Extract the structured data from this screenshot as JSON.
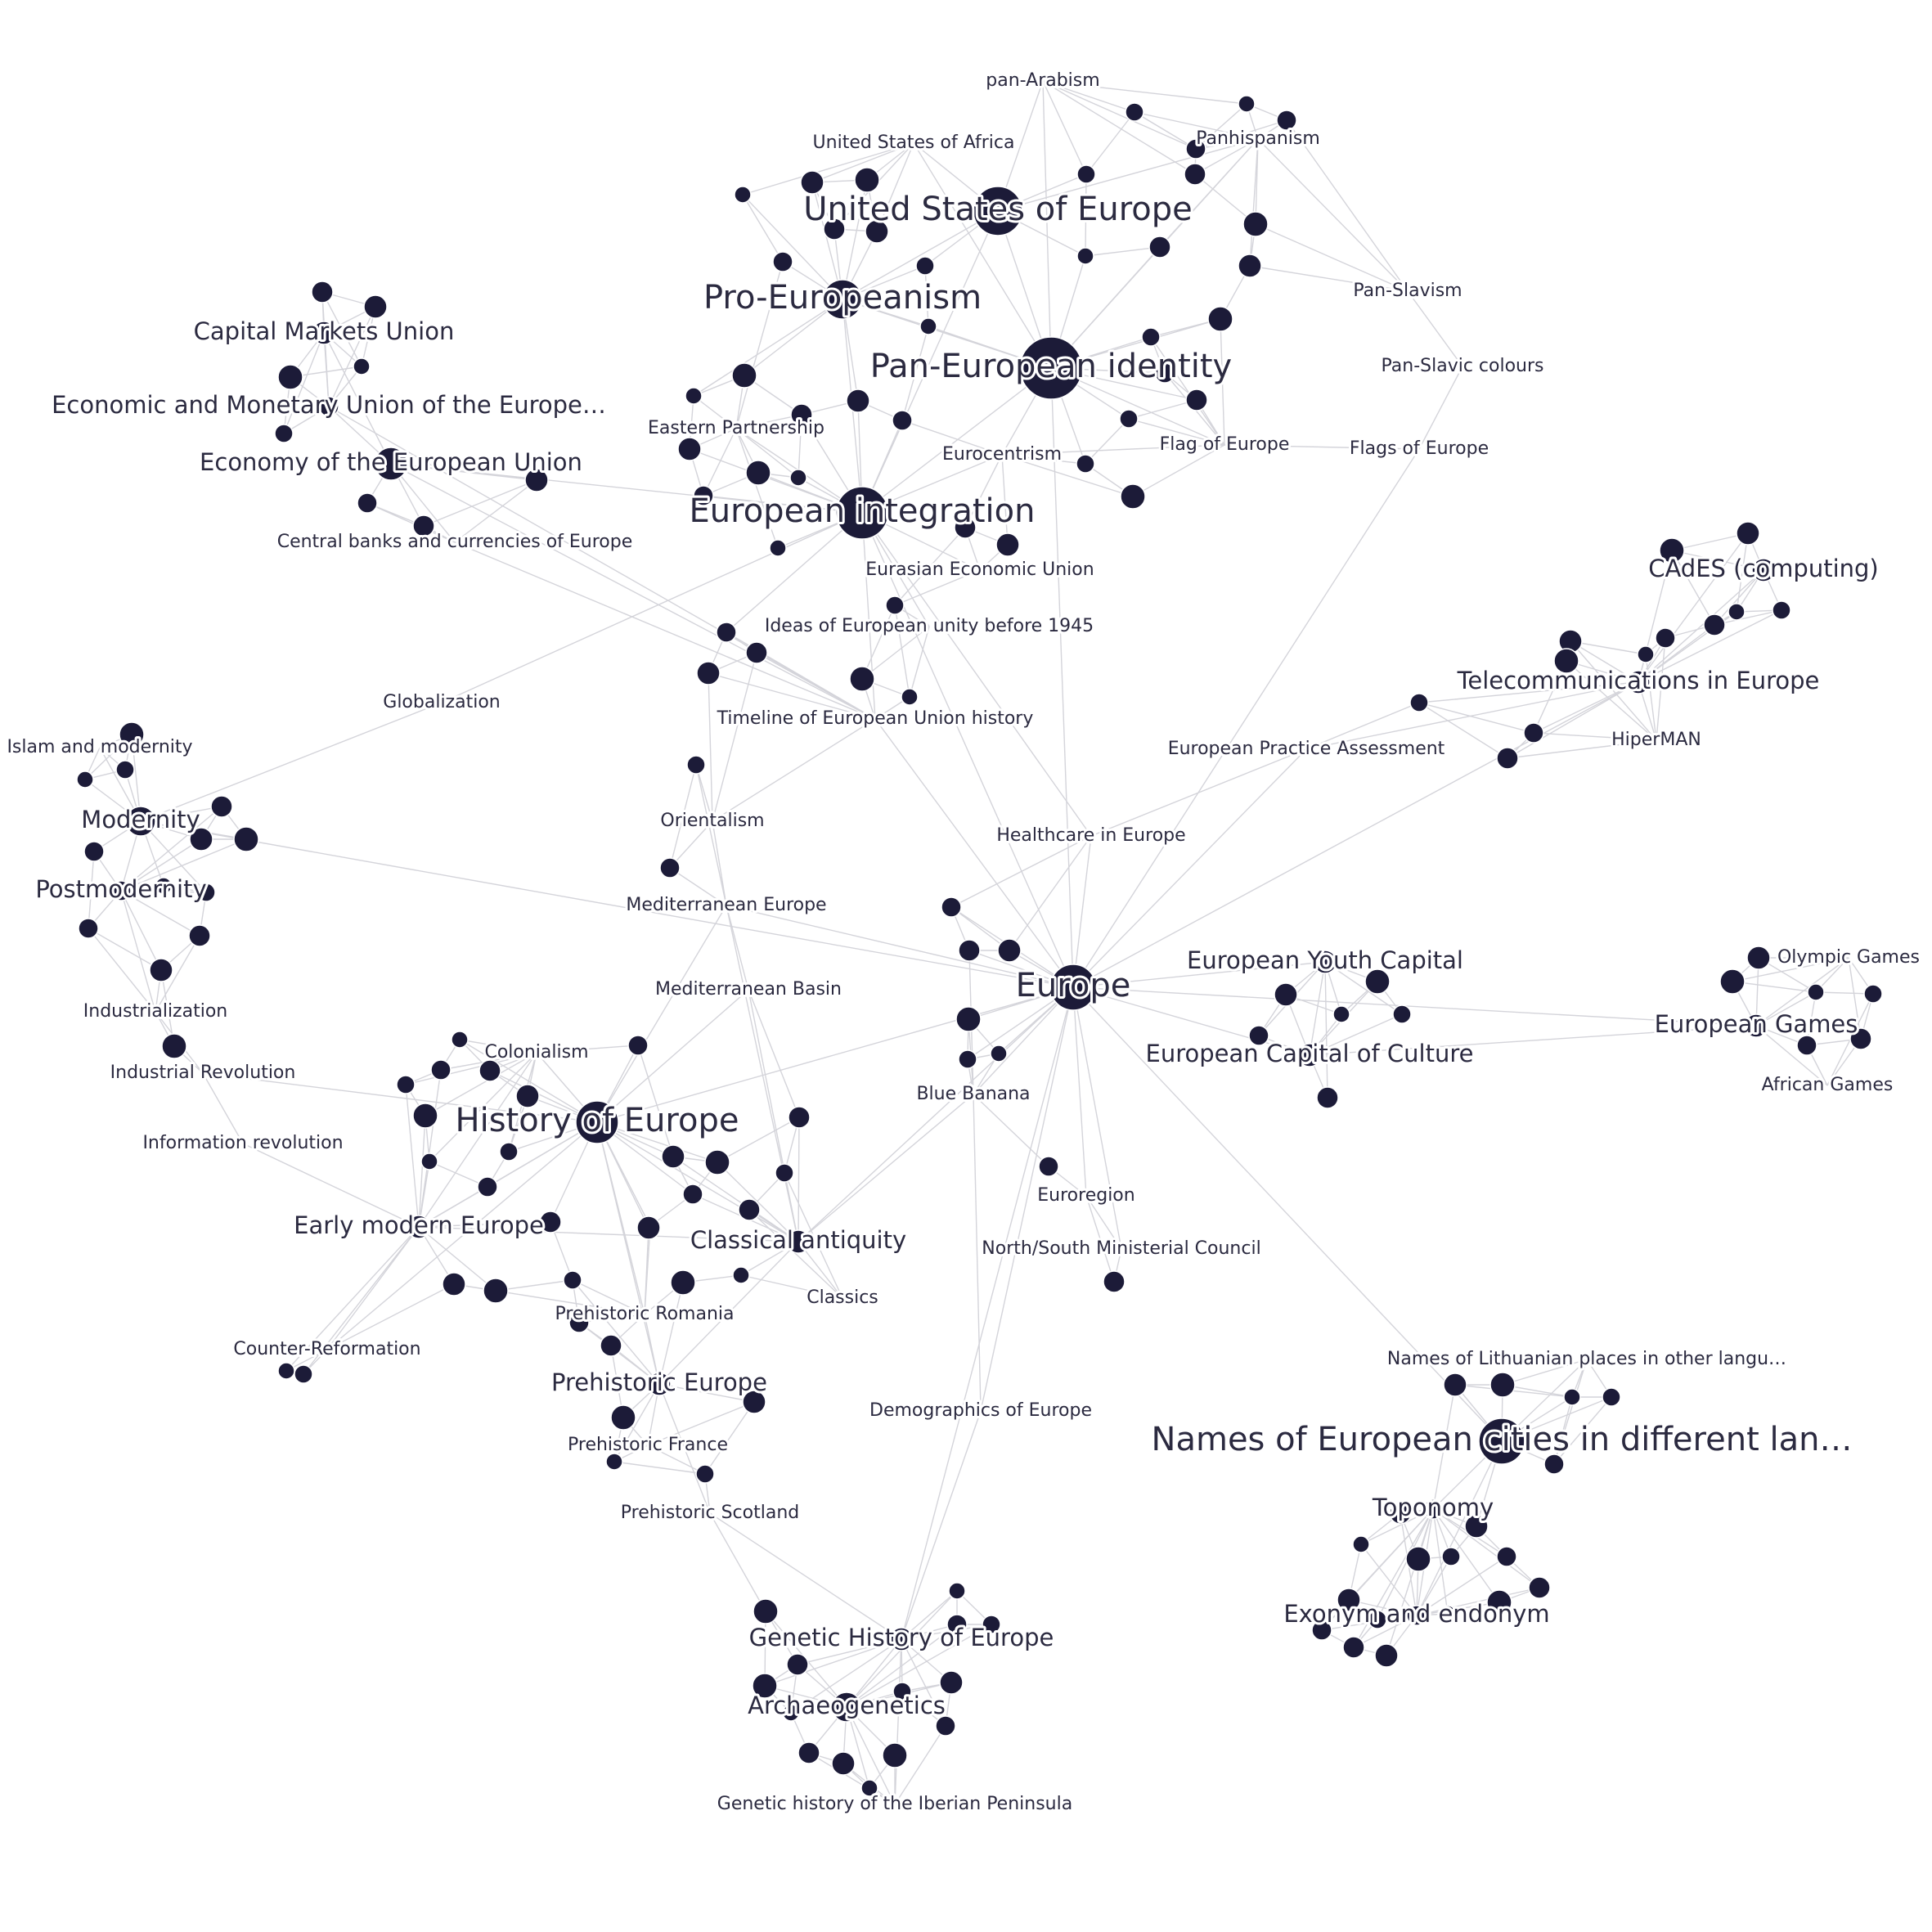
{
  "colors": {
    "node": "#1c1b38",
    "edge": "#d4d4da",
    "label": "#2b2a40",
    "background": "#ffffff"
  },
  "nodes": [
    {
      "id": "europe",
      "label": "Europe",
      "size": "xl"
    },
    {
      "id": "pan_identity",
      "label": "Pan-European identity",
      "size": "xl"
    },
    {
      "id": "integration",
      "label": "European integration",
      "size": "xl"
    },
    {
      "id": "use",
      "label": "United States of Europe",
      "size": "xl"
    },
    {
      "id": "pro_eu",
      "label": "Pro-Europeanism",
      "size": "xl"
    },
    {
      "id": "history",
      "label": "History of Europe",
      "size": "xl"
    },
    {
      "id": "names_cities",
      "label": "Names of European cities in different lan…",
      "size": "xl"
    },
    {
      "id": "pan_arabism",
      "label": "pan-Arabism",
      "size": "s"
    },
    {
      "id": "usa_africa",
      "label": "United States of Africa",
      "size": "s"
    },
    {
      "id": "panhispanism",
      "label": "Panhispanism",
      "size": "s"
    },
    {
      "id": "pan_slavism",
      "label": "Pan-Slavism",
      "size": "s"
    },
    {
      "id": "pan_slavic_colours",
      "label": "Pan-Slavic colours",
      "size": "s"
    },
    {
      "id": "flags_europe",
      "label": "Flags of Europe",
      "size": "s"
    },
    {
      "id": "flag_europe",
      "label": "Flag of Europe",
      "size": "s"
    },
    {
      "id": "eurocentrism",
      "label": "Eurocentrism",
      "size": "s"
    },
    {
      "id": "eastern_partnership",
      "label": "Eastern Partnership",
      "size": "s"
    },
    {
      "id": "eurasian",
      "label": "Eurasian Economic Union",
      "size": "s"
    },
    {
      "id": "ideas_unity",
      "label": "Ideas of European unity before 1945",
      "size": "s"
    },
    {
      "id": "timeline",
      "label": "Timeline of European Union history",
      "size": "s"
    },
    {
      "id": "capital_markets",
      "label": "Capital Markets Union",
      "size": "l"
    },
    {
      "id": "emu",
      "label": "Economic and Monetary Union of the Europe…",
      "size": "l"
    },
    {
      "id": "economy_eu",
      "label": "Economy of the European Union",
      "size": "l"
    },
    {
      "id": "central_banks",
      "label": "Central banks and currencies of Europe",
      "size": "s"
    },
    {
      "id": "globalization",
      "label": "Globalization",
      "size": "s"
    },
    {
      "id": "islam_modernity",
      "label": "Islam and modernity",
      "size": "s"
    },
    {
      "id": "modernity",
      "label": "Modernity",
      "size": "l"
    },
    {
      "id": "postmodernity",
      "label": "Postmodernity",
      "size": "l"
    },
    {
      "id": "industrialization",
      "label": "Industrialization",
      "size": "s"
    },
    {
      "id": "industrial_rev",
      "label": "Industrial Revolution",
      "size": "s"
    },
    {
      "id": "info_rev",
      "label": "Information revolution",
      "size": "s"
    },
    {
      "id": "colonialism",
      "label": "Colonialism",
      "size": "s"
    },
    {
      "id": "early_modern",
      "label": "Early modern Europe",
      "size": "l"
    },
    {
      "id": "counter_ref",
      "label": "Counter-Reformation",
      "size": "s"
    },
    {
      "id": "orientalism",
      "label": "Orientalism",
      "size": "s"
    },
    {
      "id": "med_europe",
      "label": "Mediterranean Europe",
      "size": "s"
    },
    {
      "id": "med_basin",
      "label": "Mediterranean Basin",
      "size": "s"
    },
    {
      "id": "classical",
      "label": "Classical antiquity",
      "size": "l"
    },
    {
      "id": "classics",
      "label": "Classics",
      "size": "s"
    },
    {
      "id": "pre_romania",
      "label": "Prehistoric Romania",
      "size": "s"
    },
    {
      "id": "pre_europe",
      "label": "Prehistoric Europe",
      "size": "l"
    },
    {
      "id": "pre_france",
      "label": "Prehistoric France",
      "size": "s"
    },
    {
      "id": "pre_scotland",
      "label": "Prehistoric Scotland",
      "size": "s"
    },
    {
      "id": "blue_banana",
      "label": "Blue Banana",
      "size": "s"
    },
    {
      "id": "euroregion",
      "label": "Euroregion",
      "size": "s"
    },
    {
      "id": "nsmc",
      "label": "North/South Ministerial Council",
      "size": "s"
    },
    {
      "id": "demographics",
      "label": "Demographics of Europe",
      "size": "s"
    },
    {
      "id": "genetic_history",
      "label": "Genetic History of Europe",
      "size": "l"
    },
    {
      "id": "archaeogenetics",
      "label": "Archaeogenetics",
      "size": "l"
    },
    {
      "id": "iberian",
      "label": "Genetic history of the Iberian Peninsula",
      "size": "s"
    },
    {
      "id": "healthcare",
      "label": "Healthcare in Europe",
      "size": "s"
    },
    {
      "id": "epa",
      "label": "European Practice Assessment",
      "size": "s"
    },
    {
      "id": "cades",
      "label": "CAdES (computing)",
      "size": "l"
    },
    {
      "id": "telecom",
      "label": "Telecommunications in Europe",
      "size": "l"
    },
    {
      "id": "hiperman",
      "label": "HiperMAN",
      "size": "s"
    },
    {
      "id": "youth_capital",
      "label": "European Youth Capital",
      "size": "l"
    },
    {
      "id": "capital_culture",
      "label": "European Capital of Culture",
      "size": "l"
    },
    {
      "id": "olympic",
      "label": "Olympic Games",
      "size": "s"
    },
    {
      "id": "eu_games",
      "label": "European Games",
      "size": "l"
    },
    {
      "id": "african_games",
      "label": "African Games",
      "size": "s"
    },
    {
      "id": "lithuanian",
      "label": "Names of Lithuanian places in other langu…",
      "size": "s"
    },
    {
      "id": "toponomy",
      "label": "Toponomy",
      "size": "l"
    },
    {
      "id": "exonym",
      "label": "Exonym and endonym",
      "size": "l"
    }
  ]
}
